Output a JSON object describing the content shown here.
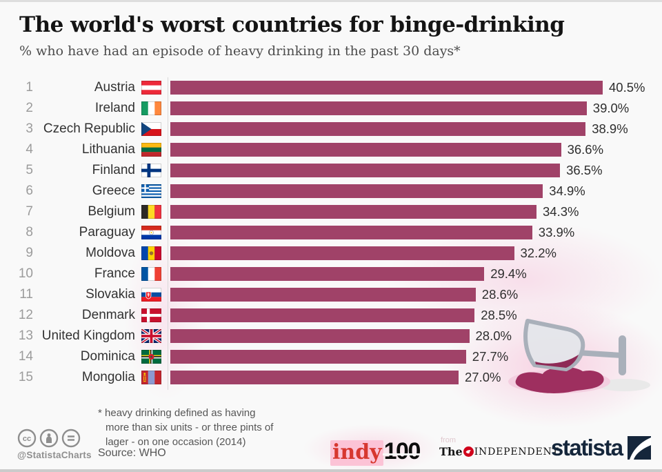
{
  "title": "The world's worst countries for binge-drinking",
  "subtitle": "% who have had an episode of heavy drinking in the past 30 days*",
  "chart_data": {
    "type": "bar",
    "orientation": "horizontal",
    "unit": "%",
    "xlim": [
      0,
      40.5
    ],
    "categories": [
      "Austria",
      "Ireland",
      "Czech Republic",
      "Lithuania",
      "Finland",
      "Greece",
      "Belgium",
      "Paraguay",
      "Moldova",
      "France",
      "Slovakia",
      "Denmark",
      "United Kingdom",
      "Dominica",
      "Mongolia"
    ],
    "values": [
      40.5,
      39.0,
      38.9,
      36.6,
      36.5,
      34.9,
      34.3,
      33.9,
      32.2,
      29.4,
      28.6,
      28.5,
      28.0,
      27.7,
      27.0
    ],
    "rows": [
      {
        "rank": "1",
        "country": "Austria",
        "flag": "at",
        "value": 40.5,
        "label": "40.5%"
      },
      {
        "rank": "2",
        "country": "Ireland",
        "flag": "ie",
        "value": 39.0,
        "label": "39.0%"
      },
      {
        "rank": "3",
        "country": "Czech Republic",
        "flag": "cz",
        "value": 38.9,
        "label": "38.9%"
      },
      {
        "rank": "4",
        "country": "Lithuania",
        "flag": "lt",
        "value": 36.6,
        "label": "36.6%"
      },
      {
        "rank": "5",
        "country": "Finland",
        "flag": "fi",
        "value": 36.5,
        "label": "36.5%"
      },
      {
        "rank": "6",
        "country": "Greece",
        "flag": "gr",
        "value": 34.9,
        "label": "34.9%"
      },
      {
        "rank": "7",
        "country": "Belgium",
        "flag": "be",
        "value": 34.3,
        "label": "34.3%"
      },
      {
        "rank": "8",
        "country": "Paraguay",
        "flag": "py",
        "value": 33.9,
        "label": "33.9%"
      },
      {
        "rank": "9",
        "country": "Moldova",
        "flag": "md",
        "value": 32.2,
        "label": "32.2%"
      },
      {
        "rank": "10",
        "country": "France",
        "flag": "fr",
        "value": 29.4,
        "label": "29.4%"
      },
      {
        "rank": "11",
        "country": "Slovakia",
        "flag": "sk",
        "value": 28.6,
        "label": "28.6%"
      },
      {
        "rank": "12",
        "country": "Denmark",
        "flag": "dk",
        "value": 28.5,
        "label": "28.5%"
      },
      {
        "rank": "13",
        "country": "United Kingdom",
        "flag": "gb",
        "value": 28.0,
        "label": "28.0%"
      },
      {
        "rank": "14",
        "country": "Dominica",
        "flag": "dm",
        "value": 27.7,
        "label": "27.7%"
      },
      {
        "rank": "15",
        "country": "Mongolia",
        "flag": "mn",
        "value": 27.0,
        "label": "27.0%"
      }
    ]
  },
  "footnote_lines": [
    "* heavy drinking defined as having",
    "more than six units - or three pints of",
    "lager - on one occasion (2014)"
  ],
  "source": "Source: WHO",
  "credit_handle": "@StatistaCharts",
  "logos": {
    "indy_word": "indy",
    "indy_num": "100",
    "independent_from": "from",
    "independent_the": "The",
    "independent_name": "INDEPENDENT",
    "statista": "statista"
  },
  "colors": {
    "bar": "#a04268",
    "wine": "#9e2f5f",
    "splash_pink": "#f6bcd6",
    "title": "#141414",
    "rank_gray": "#9b9b9b",
    "statista_navy": "#15263b",
    "indy_red": "#d7372f"
  }
}
